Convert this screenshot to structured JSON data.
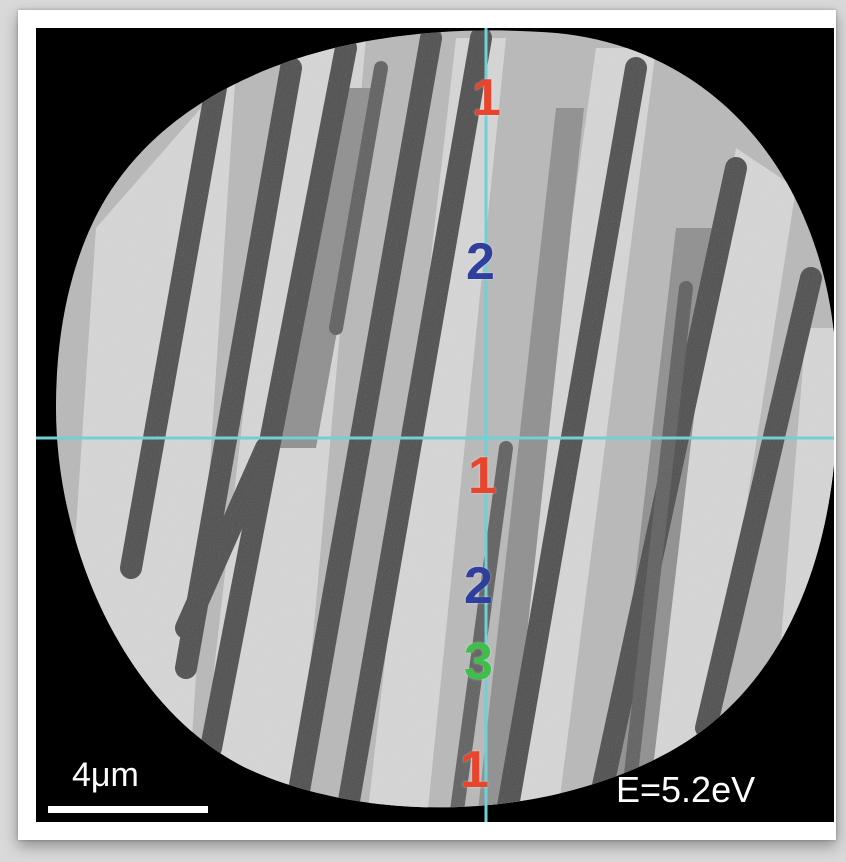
{
  "image": {
    "scale_bar_label": "4μm",
    "energy_label": "E=5.2eV",
    "region_labels": [
      {
        "text": "1",
        "color": "#e8452c"
      },
      {
        "text": "2",
        "color": "#2e3f9e"
      },
      {
        "text": "1",
        "color": "#e8452c"
      },
      {
        "text": "2",
        "color": "#2e3f9e"
      },
      {
        "text": "3",
        "color": "#3fbf4a"
      },
      {
        "text": "1",
        "color": "#e8452c"
      }
    ],
    "crosshair_color": "#6fd0d6"
  }
}
